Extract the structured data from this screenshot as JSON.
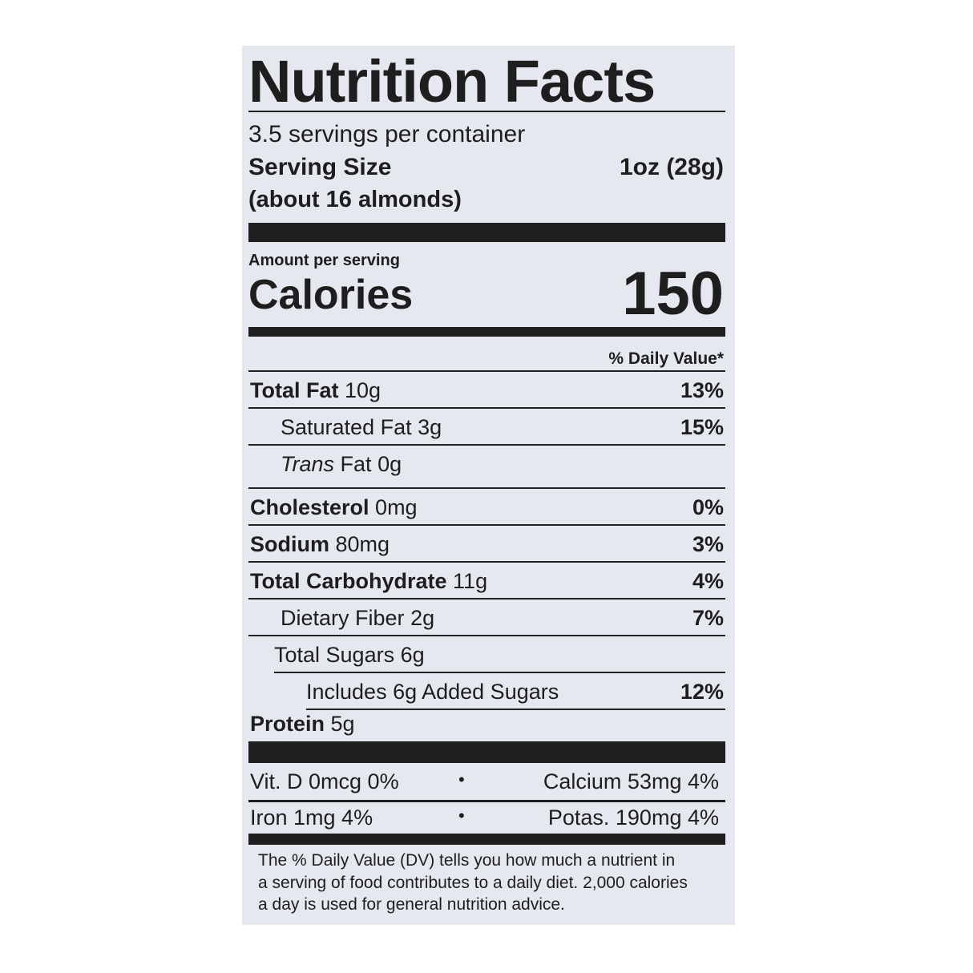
{
  "title": "Nutrition Facts",
  "servings_per_container": "3.5 servings per container",
  "serving_size_label": "Serving Size",
  "serving_size_value": "1oz (28g)",
  "serving_size_note": "(about 16 almonds)",
  "amount_per_serving": "Amount per serving",
  "calories_label": "Calories",
  "calories_value": "150",
  "daily_value_header": "% Daily Value*",
  "nutrients": [
    {
      "name": "Total Fat",
      "amount": "10g",
      "dv": "13%"
    },
    {
      "name": "Saturated Fat",
      "amount": "3g",
      "dv": "15%"
    },
    {
      "name": "Trans",
      "name_suffix": "Fat",
      "amount": "0g",
      "dv": ""
    },
    {
      "name": "Cholesterol",
      "amount": "0mg",
      "dv": "0%"
    },
    {
      "name": "Sodium",
      "amount": "80mg",
      "dv": "3%"
    },
    {
      "name": "Total Carbohydrate",
      "amount": "11g",
      "dv": "4%"
    },
    {
      "name": "Dietary Fiber",
      "amount": "2g",
      "dv": "7%"
    },
    {
      "name": "Total Sugars",
      "amount": "6g",
      "dv": ""
    },
    {
      "name": "Includes 6g Added Sugars",
      "amount": "",
      "dv": "12%"
    },
    {
      "name": "Protein",
      "amount": "5g",
      "dv": ""
    }
  ],
  "micronutrients": [
    {
      "left": "Vit. D 0mcg 0%",
      "bullet": "•",
      "right": "Calcium 53mg 4%"
    },
    {
      "left": "Iron 1mg 4%",
      "bullet": "•",
      "right": "Potas. 190mg 4%"
    }
  ],
  "footnote": [
    "The % Daily Value (DV) tells you how much a nutrient in",
    "a serving of food contributes to a daily diet. 2,000 calories",
    "a day is used for general nutrition advice."
  ]
}
